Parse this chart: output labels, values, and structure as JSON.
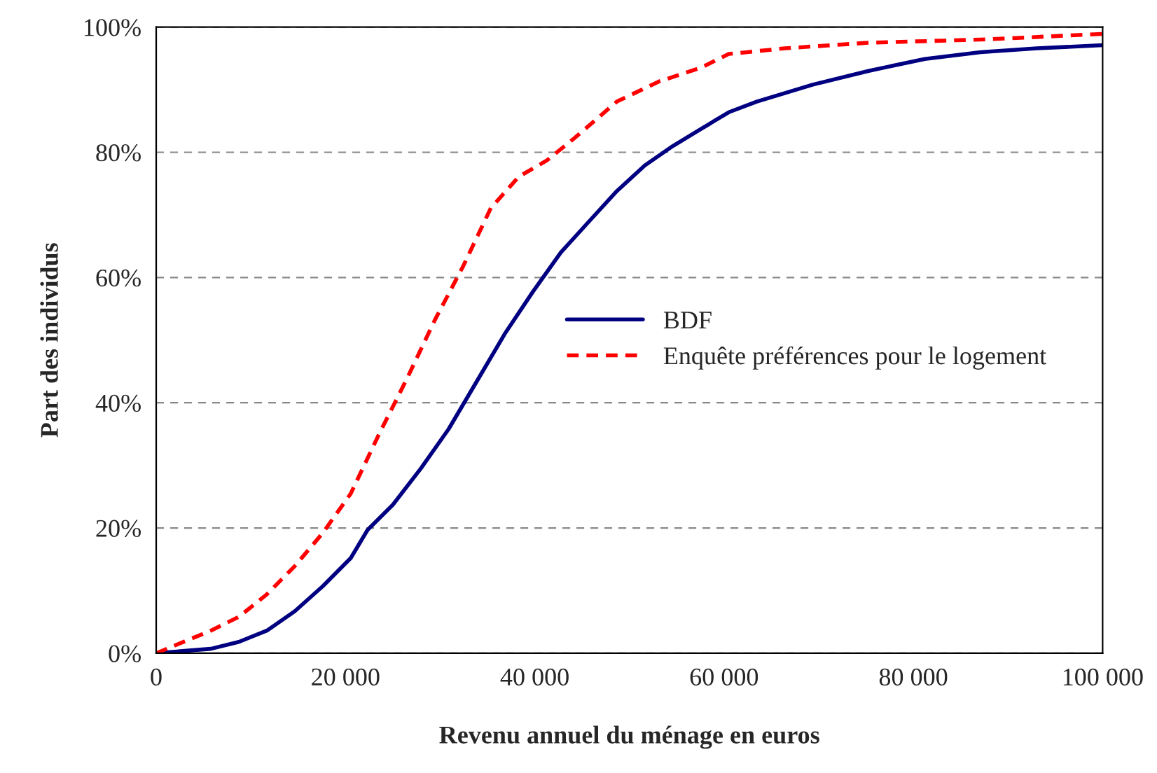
{
  "chart_data": {
    "type": "line",
    "xlabel": "Revenu annuel du ménage en euros",
    "ylabel": "Part des individus",
    "xlim": [
      0,
      100000
    ],
    "ylim": [
      0,
      100
    ],
    "xticks": [
      0,
      {
        "value": 20000,
        "label": "20 000"
      },
      {
        "value": 40000,
        "label": "40 000"
      },
      {
        "value": 60000,
        "label": "60 000"
      },
      {
        "value": 80000,
        "label": "80 000"
      },
      {
        "value": 100000,
        "label": "100 000"
      }
    ],
    "yticks": [
      {
        "value": 0,
        "label": "0%"
      },
      {
        "value": 20,
        "label": "20%"
      },
      {
        "value": 40,
        "label": "40%"
      },
      {
        "value": 60,
        "label": "60%"
      },
      {
        "value": 80,
        "label": "80%"
      },
      {
        "value": 100,
        "label": "100%"
      }
    ],
    "grid": "y",
    "legend": "right",
    "series": [
      {
        "name": "BDF",
        "color": "#000080",
        "line_style": "solid",
        "x": [
          0,
          5770,
          8730,
          11690,
          14640,
          17600,
          20560,
          22340,
          25000,
          27960,
          30900,
          33870,
          36830,
          39790,
          42750,
          45700,
          48670,
          51630,
          54590,
          57540,
          60500,
          63460,
          69380,
          75290,
          81210,
          87130,
          93050,
          100000
        ],
        "values": [
          0,
          0.7,
          1.8,
          3.6,
          6.7,
          10.7,
          15.2,
          19.7,
          23.7,
          29.5,
          35.8,
          43.4,
          51,
          57.7,
          64,
          68.9,
          73.8,
          77.9,
          81,
          83.7,
          86.4,
          88.1,
          90.8,
          93,
          94.9,
          96,
          96.6,
          97.1
        ]
      },
      {
        "name": "Enquête préférences pour le logement",
        "color": "#ff0000",
        "line_style": "dashed",
        "x": [
          0,
          5770,
          8730,
          11690,
          14640,
          17600,
          20560,
          23520,
          26480,
          29440,
          32400,
          35360,
          38310,
          41270,
          44230,
          48670,
          53110,
          57540,
          60500,
          66420,
          75290,
          87130,
          100000
        ],
        "values": [
          0,
          3.6,
          5.8,
          9.4,
          13.9,
          19.2,
          25.5,
          34.9,
          43.8,
          53.2,
          61.7,
          71.1,
          76.1,
          78.7,
          82.3,
          88.1,
          91.3,
          93.5,
          95.7,
          96.6,
          97.5,
          98,
          98.9
        ]
      }
    ]
  }
}
